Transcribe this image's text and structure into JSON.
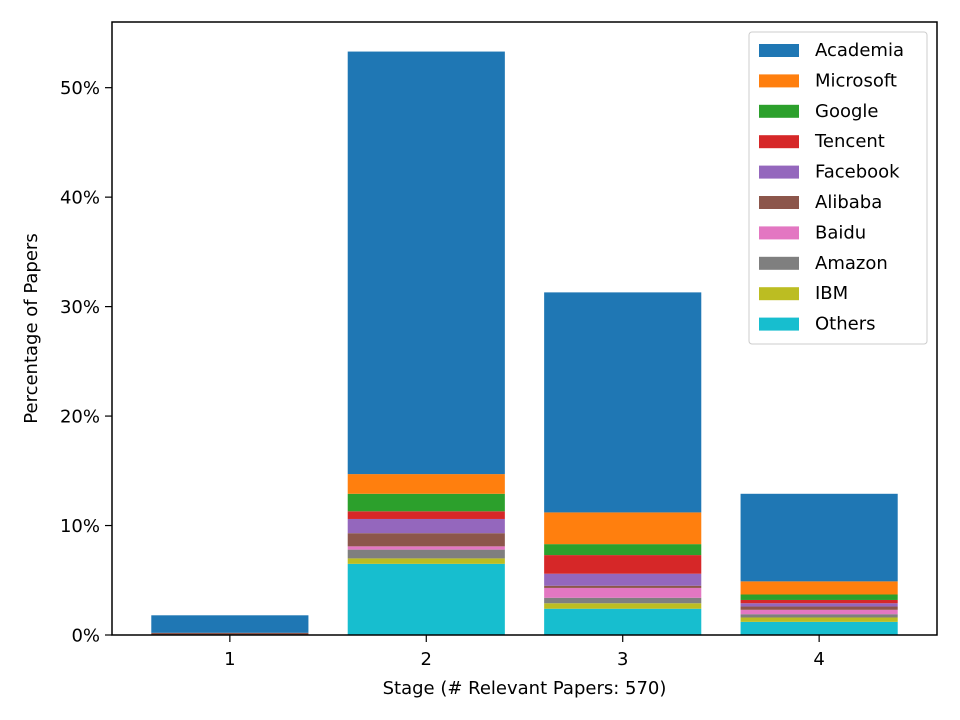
{
  "chart_data": {
    "type": "bar",
    "stacked": true,
    "title": "",
    "xlabel": "Stage (# Relevant Papers: 570)",
    "ylabel": "Percentage of Papers",
    "categories": [
      "1",
      "2",
      "3",
      "4"
    ],
    "ylim": [
      0,
      56
    ],
    "yticks": [
      0,
      10,
      20,
      30,
      40,
      50
    ],
    "ytick_labels": [
      "0%",
      "10%",
      "20%",
      "30%",
      "40%",
      "50%"
    ],
    "grid": false,
    "legend_position": "top-right",
    "series": [
      {
        "name": "Others",
        "color": "#17becf",
        "values": [
          0.0,
          6.5,
          2.4,
          1.2
        ]
      },
      {
        "name": "IBM",
        "color": "#bcbd22",
        "values": [
          0.0,
          0.5,
          0.5,
          0.4
        ]
      },
      {
        "name": "Amazon",
        "color": "#7f7f7f",
        "values": [
          0.0,
          0.8,
          0.5,
          0.3
        ]
      },
      {
        "name": "Baidu",
        "color": "#e377c2",
        "values": [
          0.0,
          0.3,
          0.9,
          0.4
        ]
      },
      {
        "name": "Alibaba",
        "color": "#8c564b",
        "values": [
          0.2,
          1.2,
          0.2,
          0.3
        ]
      },
      {
        "name": "Facebook",
        "color": "#9467bd",
        "values": [
          0.0,
          1.3,
          1.1,
          0.3
        ]
      },
      {
        "name": "Tencent",
        "color": "#d62728",
        "values": [
          0.0,
          0.7,
          1.7,
          0.3
        ]
      },
      {
        "name": "Google",
        "color": "#2ca02c",
        "values": [
          0.0,
          1.6,
          1.0,
          0.5
        ]
      },
      {
        "name": "Microsoft",
        "color": "#ff7f0e",
        "values": [
          0.0,
          1.8,
          2.9,
          1.2
        ]
      },
      {
        "name": "Academia",
        "color": "#1f77b4",
        "values": [
          1.6,
          38.6,
          20.1,
          8.0
        ]
      }
    ],
    "legend_order": [
      "Academia",
      "Microsoft",
      "Google",
      "Tencent",
      "Facebook",
      "Alibaba",
      "Baidu",
      "Amazon",
      "IBM",
      "Others"
    ]
  }
}
